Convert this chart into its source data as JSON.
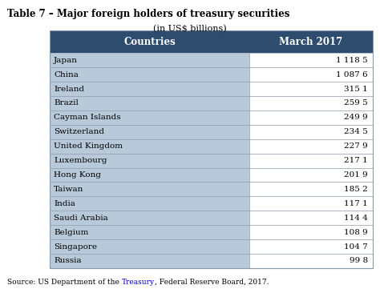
{
  "title": "Table 7 – Major foreign holders of treasury securities",
  "subtitle": "(in US$ billions)",
  "header": [
    "Countries",
    "March 2017"
  ],
  "rows": [
    [
      "Japan",
      "1 118 5"
    ],
    [
      "China",
      "1 087 6"
    ],
    [
      "Ireland",
      "315 1"
    ],
    [
      "Brazil",
      "259 5"
    ],
    [
      "Cayman Islands",
      "249 9"
    ],
    [
      "Switzerland",
      "234 5"
    ],
    [
      "United Kingdom",
      "227 9"
    ],
    [
      "Luxembourg",
      "217 1"
    ],
    [
      "Hong Kong",
      "201 9"
    ],
    [
      "Taiwan",
      "185 2"
    ],
    [
      "India",
      "117 1"
    ],
    [
      "Saudi Arabia",
      "114 4"
    ],
    [
      "Belgium",
      "108 9"
    ],
    [
      "Singapore",
      "104 7"
    ],
    [
      "Russia",
      "99 8"
    ]
  ],
  "header_bg": "#2E4C6E",
  "header_fg": "#FFFFFF",
  "row_bg_left": "#B8C9D9",
  "cell_right_bg": "#FFFFFF",
  "border_color": "#8899AA",
  "source_prefix": "Source: US Department of the ",
  "source_link": "Treasury",
  "source_suffix": ", Federal Reserve Board, 2017.",
  "source_link_color": "#0000CC"
}
